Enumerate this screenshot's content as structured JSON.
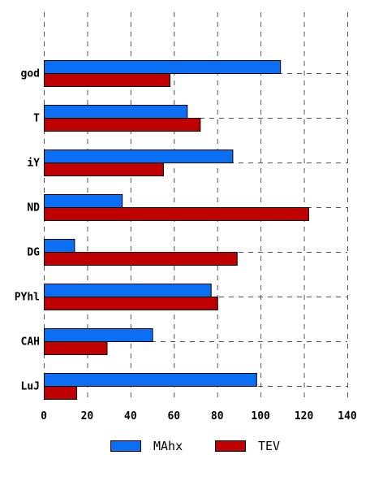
{
  "chart_data": {
    "type": "bar",
    "orientation": "horizontal",
    "categories": [
      "god",
      "T",
      "iY",
      "ND",
      "DG",
      "PYhl",
      "CAH",
      "LuJ"
    ],
    "series": [
      {
        "name": "MAhx",
        "color": "#0a6ff5",
        "values": [
          109,
          66,
          87,
          36,
          14,
          77,
          50,
          98
        ]
      },
      {
        "name": "TEV",
        "color": "#bf0000",
        "values": [
          58,
          72,
          55,
          122,
          89,
          80,
          29,
          15
        ]
      }
    ],
    "xlim": [
      0,
      140
    ],
    "xticks": [
      0,
      20,
      40,
      60,
      80,
      100,
      120,
      140
    ],
    "grid": true,
    "legend_position": "bottom",
    "title": "",
    "xlabel": "",
    "ylabel": ""
  }
}
